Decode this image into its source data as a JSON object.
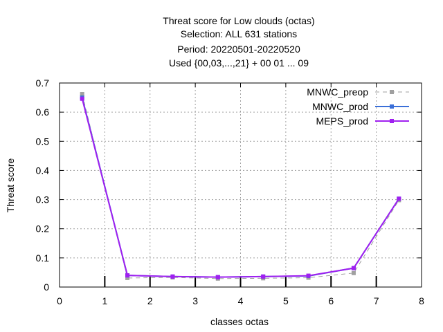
{
  "chart_data": {
    "type": "line",
    "title_lines": [
      "Threat score  for Low clouds (octas)",
      "Selection: ALL    631 stations",
      "Period: 20220501-20220520",
      "Used {00,03,...,21} + 00 01 ... 09"
    ],
    "xlabel": "classes octas",
    "ylabel": "Threat score",
    "xlim": [
      0,
      8
    ],
    "ylim": [
      0,
      0.7
    ],
    "xticks": [
      0,
      1,
      2,
      3,
      4,
      5,
      6,
      7,
      8
    ],
    "xtick_labels": [
      "0",
      "1",
      "2",
      "3",
      "4",
      "5",
      "6",
      "7",
      "8"
    ],
    "yticks": [
      0,
      0.1,
      0.2,
      0.3,
      0.4,
      0.5,
      0.6,
      0.7
    ],
    "ytick_labels": [
      "0",
      "0.1",
      "0.2",
      "0.3",
      "0.4",
      "0.5",
      "0.6",
      "0.7"
    ],
    "grid": true,
    "legend_position": "top-right",
    "x": [
      0.5,
      1.5,
      2.5,
      3.5,
      4.5,
      5.5,
      6.5,
      7.5
    ],
    "series": [
      {
        "name": "MNWC_preop",
        "color": "#a0a0a0",
        "dashed": true,
        "values": [
          0.662,
          0.031,
          0.033,
          0.029,
          0.03,
          0.032,
          0.048,
          0.298
        ]
      },
      {
        "name": "MNWC_prod",
        "color": "#3a6fd8",
        "dashed": false,
        "values": [
          0.65,
          0.04,
          0.036,
          0.034,
          0.036,
          0.038,
          0.065,
          0.303
        ]
      },
      {
        "name": "MEPS_prod",
        "color": "#a020f0",
        "dashed": false,
        "values": [
          0.646,
          0.04,
          0.036,
          0.034,
          0.036,
          0.039,
          0.065,
          0.303
        ]
      }
    ]
  }
}
